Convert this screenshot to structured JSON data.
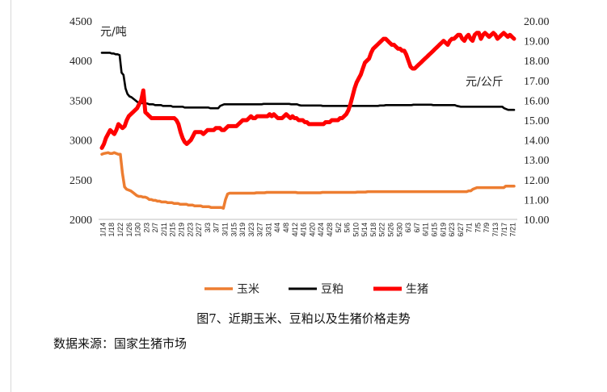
{
  "chart_data": {
    "type": "line",
    "left_axis": {
      "unit_label": "元/吨",
      "min": 2000,
      "max": 4500,
      "step": 500,
      "ticks": [
        "2000",
        "2500",
        "3000",
        "3500",
        "4000",
        "4500"
      ]
    },
    "right_axis": {
      "unit_label": "元/公斤",
      "min": 10,
      "max": 20,
      "step": 1,
      "ticks": [
        "10.00",
        "11.00",
        "12.00",
        "13.00",
        "14.00",
        "15.00",
        "16.00",
        "17.00",
        "18.00",
        "19.00",
        "20.00"
      ]
    },
    "x_labels": [
      "1/14",
      "1/18",
      "1/22",
      "1/26",
      "1/30",
      "2/3",
      "2/7",
      "2/11",
      "2/15",
      "2/19",
      "2/23",
      "2/27",
      "3/3",
      "3/7",
      "3/11",
      "3/15",
      "3/19",
      "3/23",
      "3/27",
      "3/31",
      "4/4",
      "4/8",
      "4/12",
      "4/16",
      "4/20",
      "4/24",
      "4/28",
      "5/2",
      "5/6",
      "5/10",
      "5/14",
      "5/18",
      "5/22",
      "5/26",
      "5/30",
      "6/3",
      "6/7",
      "6/11",
      "6/15",
      "6/19",
      "6/23",
      "6/27",
      "7/1",
      "7/5",
      "7/9",
      "7/13",
      "7/17",
      "7/21"
    ],
    "grid": false,
    "legend_position": "bottom",
    "series": [
      {
        "name": "玉米",
        "color": "#ed7d31",
        "axis": "left",
        "values": [
          2820,
          2830,
          2835,
          2840,
          2830,
          2830,
          2840,
          2830,
          2820,
          2820,
          2580,
          2410,
          2380,
          2370,
          2360,
          2340,
          2320,
          2300,
          2290,
          2290,
          2280,
          2280,
          2270,
          2250,
          2250,
          2240,
          2240,
          2230,
          2230,
          2220,
          2220,
          2220,
          2210,
          2210,
          2210,
          2200,
          2200,
          2200,
          2190,
          2190,
          2190,
          2190,
          2180,
          2180,
          2180,
          2170,
          2170,
          2170,
          2170,
          2160,
          2160,
          2160,
          2160,
          2150,
          2150,
          2150,
          2150,
          2150,
          2150,
          2140,
          2250,
          2320,
          2330,
          2330,
          2330,
          2330,
          2330,
          2330,
          2330,
          2330,
          2330,
          2330,
          2330,
          2330,
          2330,
          2335,
          2335,
          2335,
          2335,
          2335,
          2340,
          2340,
          2340,
          2340,
          2340,
          2340,
          2340,
          2340,
          2340,
          2340,
          2340,
          2340,
          2340,
          2340,
          2340,
          2335,
          2335,
          2335,
          2335,
          2335,
          2335,
          2335,
          2335,
          2335,
          2335,
          2335,
          2335,
          2340,
          2340,
          2340,
          2340,
          2340,
          2340,
          2340,
          2340,
          2340,
          2340,
          2340,
          2340,
          2340,
          2340,
          2340,
          2340,
          2340,
          2345,
          2345,
          2345,
          2345,
          2345,
          2350,
          2350,
          2350,
          2350,
          2350,
          2350,
          2350,
          2350,
          2350,
          2350,
          2350,
          2350,
          2350,
          2350,
          2350,
          2350,
          2350,
          2350,
          2350,
          2350,
          2350,
          2350,
          2350,
          2350,
          2350,
          2350,
          2350,
          2350,
          2350,
          2350,
          2350,
          2350,
          2350,
          2350,
          2350,
          2350,
          2350,
          2350,
          2350,
          2350,
          2350,
          2350,
          2350,
          2350,
          2350,
          2350,
          2350,
          2350,
          2350,
          2360,
          2360,
          2380,
          2390,
          2400,
          2400,
          2400,
          2400,
          2400,
          2400,
          2400,
          2400,
          2400,
          2400,
          2400,
          2400,
          2400,
          2400,
          2420,
          2420,
          2420,
          2420,
          2420
        ]
      },
      {
        "name": "豆粕",
        "color": "#000000",
        "axis": "left",
        "values": [
          4100,
          4100,
          4100,
          4100,
          4100,
          4090,
          4090,
          4080,
          4080,
          4070,
          3850,
          3820,
          3650,
          3580,
          3550,
          3540,
          3520,
          3500,
          3480,
          3470,
          3470,
          3460,
          3460,
          3460,
          3450,
          3450,
          3450,
          3440,
          3440,
          3440,
          3440,
          3430,
          3430,
          3430,
          3430,
          3430,
          3420,
          3420,
          3420,
          3420,
          3420,
          3420,
          3410,
          3410,
          3410,
          3410,
          3410,
          3410,
          3410,
          3410,
          3410,
          3410,
          3410,
          3410,
          3410,
          3400,
          3400,
          3400,
          3400,
          3400,
          3430,
          3440,
          3450,
          3450,
          3450,
          3450,
          3450,
          3450,
          3450,
          3450,
          3450,
          3450,
          3450,
          3450,
          3450,
          3450,
          3450,
          3450,
          3450,
          3450,
          3450,
          3450,
          3455,
          3455,
          3455,
          3455,
          3455,
          3455,
          3455,
          3455,
          3455,
          3455,
          3455,
          3455,
          3455,
          3455,
          3450,
          3450,
          3450,
          3450,
          3440,
          3435,
          3435,
          3435,
          3435,
          3435,
          3435,
          3435,
          3435,
          3435,
          3435,
          3435,
          3430,
          3430,
          3430,
          3430,
          3430,
          3430,
          3430,
          3430,
          3430,
          3430,
          3430,
          3430,
          3430,
          3430,
          3430,
          3430,
          3430,
          3430,
          3430,
          3430,
          3430,
          3430,
          3430,
          3430,
          3430,
          3430,
          3430,
          3430,
          3430,
          3435,
          3435,
          3435,
          3440,
          3440,
          3440,
          3440,
          3440,
          3440,
          3440,
          3440,
          3440,
          3440,
          3440,
          3440,
          3440,
          3440,
          3445,
          3445,
          3445,
          3445,
          3445,
          3445,
          3445,
          3445,
          3445,
          3445,
          3440,
          3440,
          3440,
          3440,
          3440,
          3440,
          3440,
          3440,
          3440,
          3440,
          3440,
          3440,
          3430,
          3425,
          3420,
          3420,
          3420,
          3420,
          3420,
          3420,
          3420,
          3420,
          3420,
          3420,
          3420,
          3420,
          3420,
          3420,
          3420,
          3420,
          3420,
          3420,
          3420,
          3420,
          3420,
          3420,
          3400,
          3390,
          3380,
          3380,
          3380,
          3380
        ]
      },
      {
        "name": "生猪",
        "color": "#ff0000",
        "axis": "right",
        "values": [
          13.6,
          13.8,
          14.1,
          14.3,
          14.5,
          14.4,
          14.3,
          14.5,
          14.8,
          14.7,
          14.6,
          14.7,
          15.0,
          15.2,
          15.3,
          15.4,
          15.5,
          15.6,
          15.8,
          16.0,
          16.5,
          15.4,
          15.3,
          15.2,
          15.1,
          15.1,
          15.1,
          15.1,
          15.1,
          15.1,
          15.1,
          15.1,
          15.1,
          15.1,
          15.1,
          15.1,
          15.0,
          14.8,
          14.4,
          14.1,
          13.9,
          13.8,
          13.9,
          14.0,
          14.2,
          14.4,
          14.4,
          14.4,
          14.4,
          14.3,
          14.4,
          14.5,
          14.5,
          14.5,
          14.5,
          14.6,
          14.6,
          14.6,
          14.5,
          14.5,
          14.6,
          14.7,
          14.7,
          14.7,
          14.7,
          14.7,
          14.8,
          14.9,
          15.0,
          15.0,
          15.0,
          15.1,
          15.2,
          15.1,
          15.1,
          15.2,
          15.2,
          15.2,
          15.2,
          15.2,
          15.2,
          15.3,
          15.2,
          15.3,
          15.2,
          15.1,
          15.1,
          15.1,
          15.2,
          15.3,
          15.2,
          15.1,
          15.2,
          15.1,
          15.1,
          15.0,
          15.0,
          15.0,
          14.9,
          14.9,
          14.8,
          14.8,
          14.8,
          14.8,
          14.8,
          14.8,
          14.8,
          14.8,
          14.9,
          14.9,
          14.9,
          15.0,
          15.0,
          15.0,
          15.0,
          15.1,
          15.1,
          15.2,
          15.3,
          15.5,
          15.8,
          16.2,
          16.6,
          16.9,
          17.1,
          17.3,
          17.6,
          17.9,
          18.0,
          18.1,
          18.4,
          18.6,
          18.7,
          18.8,
          18.9,
          19.0,
          19.1,
          19.1,
          19.0,
          18.9,
          18.8,
          18.8,
          18.7,
          18.6,
          18.6,
          18.5,
          18.5,
          18.3,
          18.0,
          17.7,
          17.6,
          17.6,
          17.7,
          17.8,
          17.9,
          18.0,
          18.1,
          18.2,
          18.3,
          18.4,
          18.5,
          18.6,
          18.7,
          18.8,
          18.9,
          19.0,
          18.9,
          18.8,
          19.0,
          19.1,
          19.1,
          19.2,
          19.3,
          19.3,
          19.1,
          19.0,
          19.2,
          19.3,
          19.1,
          19.0,
          19.3,
          19.4,
          19.4,
          19.1,
          19.3,
          19.4,
          19.3,
          19.2,
          19.3,
          19.4,
          19.3,
          19.1,
          19.2,
          19.3,
          19.4,
          19.3,
          19.2,
          19.3,
          19.2,
          19.1
        ]
      }
    ]
  },
  "caption": "图7、近期玉米、豆粕以及生猪价格走势",
  "source": "数据来源：国家生猪市场"
}
